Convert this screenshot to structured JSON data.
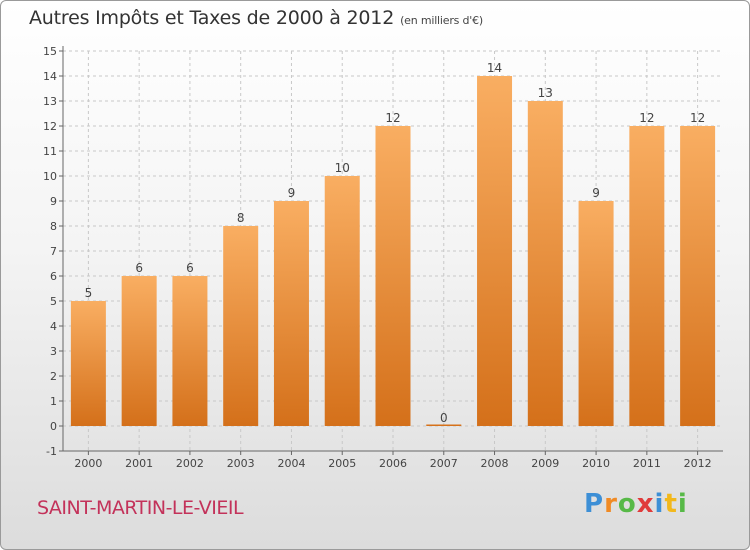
{
  "title": "Autres Impôts et Taxes de 2000 à 2012",
  "subtitle": "(en milliers d'€)",
  "commune": "SAINT-MARTIN-LE-VIEIL",
  "brand": {
    "letters": [
      "P",
      "r",
      "o",
      "x",
      "i",
      "t",
      "i"
    ],
    "colors": [
      "#3d8fd6",
      "#f08a24",
      "#57b947",
      "#e03b3b",
      "#3d8fd6",
      "#f2b81c",
      "#57b947"
    ]
  },
  "colors": {
    "bar_light": "#f7a85a",
    "bar_dark": "#d6711a",
    "grid": "#c8c8c8"
  },
  "chart_data": {
    "type": "bar",
    "categories": [
      "2000",
      "2001",
      "2002",
      "2003",
      "2004",
      "2005",
      "2006",
      "2007",
      "2008",
      "2009",
      "2010",
      "2011",
      "2012"
    ],
    "values": [
      5,
      6,
      6,
      8,
      9,
      10,
      12,
      0,
      14,
      13,
      9,
      12,
      12
    ],
    "ylim": [
      -1,
      15
    ],
    "yticks": [
      -1,
      0,
      1,
      2,
      3,
      4,
      5,
      6,
      7,
      8,
      9,
      10,
      11,
      12,
      13,
      14,
      15
    ],
    "grid": true
  }
}
